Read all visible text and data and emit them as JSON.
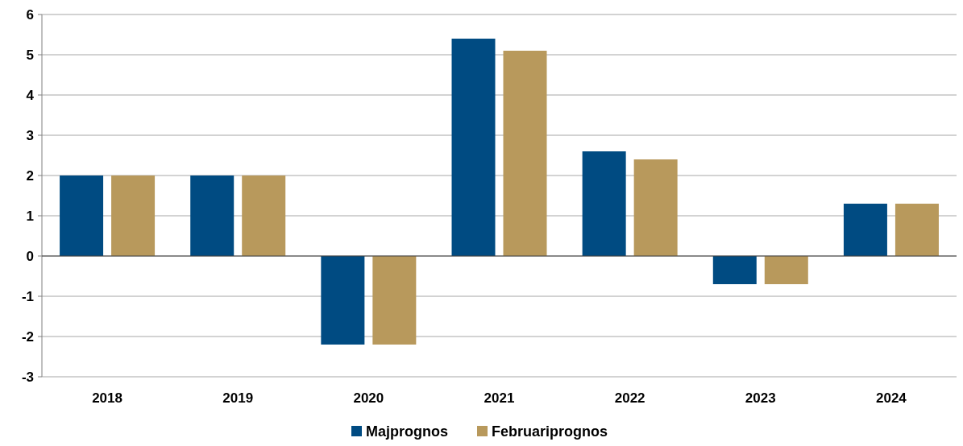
{
  "chart_data": {
    "type": "bar",
    "categories": [
      "2018",
      "2019",
      "2020",
      "2021",
      "2022",
      "2023",
      "2024"
    ],
    "series": [
      {
        "name": "Majprognos",
        "color": "#004b82",
        "values": [
          2,
          2,
          -2.2,
          5.4,
          2.6,
          -0.7,
          1.3
        ]
      },
      {
        "name": "Februariprognos",
        "color": "#b8995c",
        "values": [
          2,
          2,
          -2.2,
          5.1,
          2.4,
          -0.7,
          1.3
        ]
      }
    ],
    "ylim": [
      -3,
      6
    ],
    "yticks": [
      -3,
      -2,
      -1,
      0,
      1,
      2,
      3,
      4,
      5,
      6
    ],
    "grid": "y",
    "legend": "bottom"
  }
}
